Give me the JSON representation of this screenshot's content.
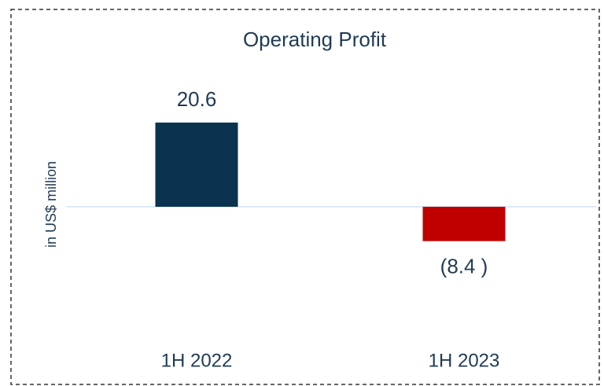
{
  "chart_data": {
    "type": "bar",
    "title": "Operating Profit",
    "y_label": "in US$ million",
    "categories": [
      "1H 2022",
      "1H 2023"
    ],
    "values": [
      20.6,
      -8.4
    ],
    "value_labels": [
      "20.6",
      "(8.4 )"
    ],
    "colors": [
      "#0b3350",
      "#c00000"
    ],
    "ylim": [
      -25,
      30
    ]
  }
}
